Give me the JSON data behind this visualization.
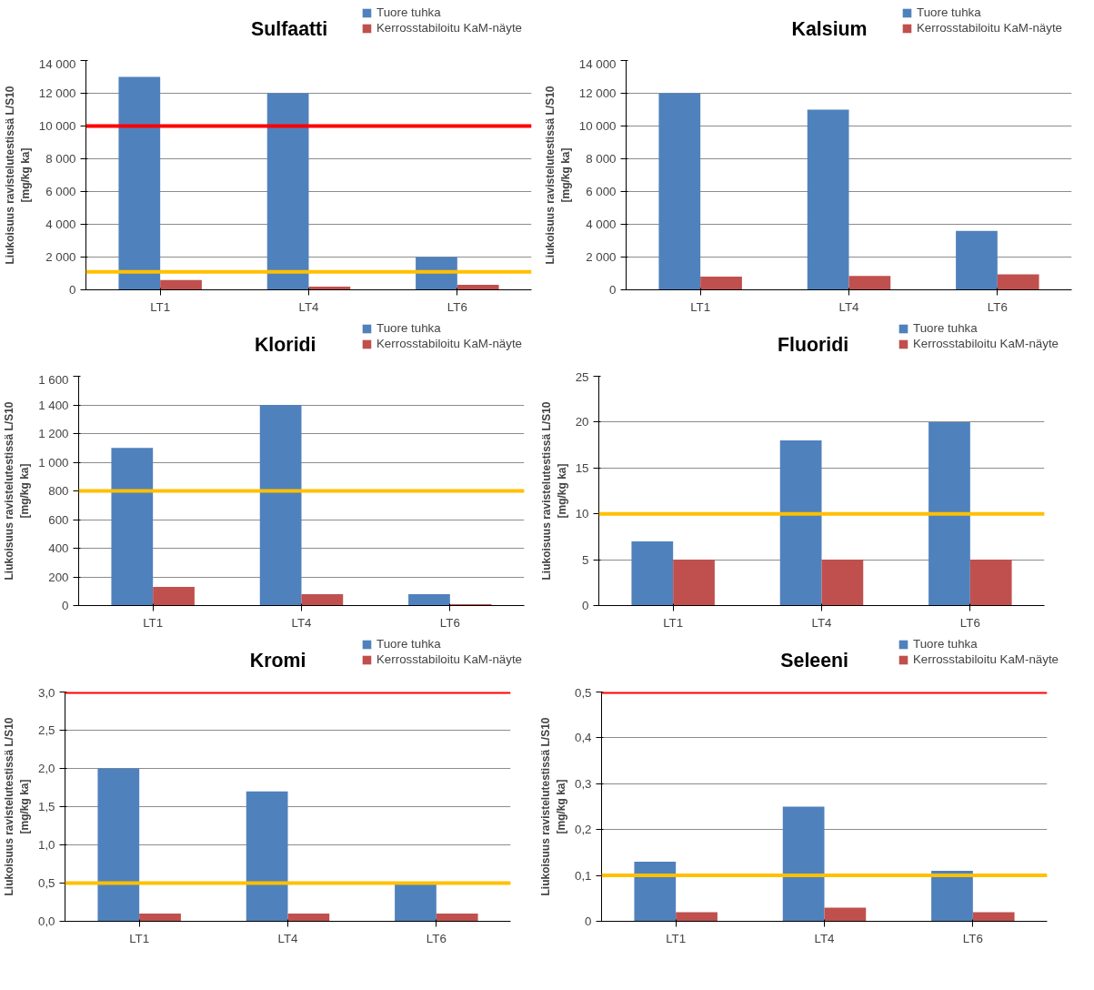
{
  "chart_data": [
    {
      "type": "bar",
      "title": "Sulfaatti",
      "ylabel": "Liukoisuus ravistelutestissä L/S10\n[mg/kg ka]",
      "categories": [
        "LT1",
        "LT4",
        "LT6"
      ],
      "series": [
        {
          "name": "Tuore tuhka",
          "color": "#4f81bd",
          "values": [
            13000,
            12000,
            2000
          ]
        },
        {
          "name": "Kerrosstabiloitu KaM-näyte",
          "color": "#c0504d",
          "values": [
            600,
            200,
            300
          ]
        }
      ],
      "ylim": [
        0,
        14000
      ],
      "yticks": [
        0,
        {
          "value": 2000,
          "label": "2 000"
        },
        {
          "value": 4000,
          "label": "4 000"
        },
        {
          "value": 6000,
          "label": "6 000"
        },
        {
          "value": 8000,
          "label": "8 000"
        },
        {
          "value": 10000,
          "label": "10 000"
        },
        {
          "value": 12000,
          "label": "12 000"
        },
        {
          "value": 14000,
          "label": "14 000"
        }
      ],
      "ref_lines": [
        {
          "axis": "y",
          "value": 10000,
          "color": "#ff0000"
        },
        {
          "axis": "y",
          "value": 1100,
          "color": "#ffc000"
        }
      ],
      "grid": "y",
      "legend": "top right"
    },
    {
      "type": "bar",
      "title": "Kalsium",
      "ylabel": "Liukoisuus ravistelutestissä L/S10\n[mg/kg ka]",
      "categories": [
        "LT1",
        "LT4",
        "LT6"
      ],
      "series": [
        {
          "name": "Tuore tuhka",
          "color": "#4f81bd",
          "values": [
            12000,
            11000,
            3600
          ]
        },
        {
          "name": "Kerrosstabiloitu KaM-näyte",
          "color": "#c0504d",
          "values": [
            800,
            850,
            950
          ]
        }
      ],
      "ylim": [
        0,
        14000
      ],
      "yticks": [
        0,
        {
          "value": 2000,
          "label": "2 000"
        },
        {
          "value": 4000,
          "label": "4 000"
        },
        {
          "value": 6000,
          "label": "6 000"
        },
        {
          "value": 8000,
          "label": "8 000"
        },
        {
          "value": 10000,
          "label": "10 000"
        },
        {
          "value": 12000,
          "label": "12 000"
        },
        {
          "value": 14000,
          "label": "14 000"
        }
      ],
      "grid": "y",
      "legend": "top right"
    },
    {
      "type": "bar",
      "title": "Kloridi",
      "ylabel": "Liukoisuus ravistelutestissä L/S10\n[mg/kg ka]",
      "categories": [
        "LT1",
        "LT4",
        "LT6"
      ],
      "series": [
        {
          "name": "Tuore tuhka",
          "color": "#4f81bd",
          "values": [
            1100,
            1400,
            80
          ]
        },
        {
          "name": "Kerrosstabiloitu KaM-näyte",
          "color": "#c0504d",
          "values": [
            130,
            80,
            10
          ]
        }
      ],
      "ylim": [
        0,
        1600
      ],
      "yticks": [
        0,
        200,
        400,
        600,
        800,
        {
          "value": 1000,
          "label": "1 000"
        },
        {
          "value": 1200,
          "label": "1 200"
        },
        {
          "value": 1400,
          "label": "1 400"
        },
        {
          "value": 1600,
          "label": "1 600"
        }
      ],
      "ref_lines": [
        {
          "axis": "y",
          "value": 800,
          "color": "#ffc000"
        }
      ],
      "grid": "y",
      "legend": "top right"
    },
    {
      "type": "bar",
      "title": "Fluoridi",
      "ylabel": "Liukoisuus ravistelutestissä L/S10\n[mg/kg ka]",
      "categories": [
        "LT1",
        "LT4",
        "LT6"
      ],
      "series": [
        {
          "name": "Tuore tuhka",
          "color": "#4f81bd",
          "values": [
            7,
            18,
            20
          ]
        },
        {
          "name": "Kerrosstabiloitu KaM-näyte",
          "color": "#c0504d",
          "values": [
            5,
            5,
            5
          ]
        }
      ],
      "ylim": [
        0,
        25
      ],
      "yticks": [
        0,
        5,
        10,
        15,
        20,
        25
      ],
      "ref_lines": [
        {
          "axis": "y",
          "value": 10,
          "color": "#ffc000"
        }
      ],
      "grid": "y",
      "legend": "top right"
    },
    {
      "type": "bar",
      "title": "Kromi",
      "ylabel": "Liukoisuus ravistelutestissä L/S10\n[mg/kg ka]",
      "categories": [
        "LT1",
        "LT4",
        "LT6"
      ],
      "series": [
        {
          "name": "Tuore tuhka",
          "color": "#4f81bd",
          "values": [
            2.0,
            1.7,
            0.5
          ]
        },
        {
          "name": "Kerrosstabiloitu KaM-näyte",
          "color": "#c0504d",
          "values": [
            0.1,
            0.1,
            0.1
          ]
        }
      ],
      "ylim": [
        0,
        3
      ],
      "yticks": [
        {
          "value": 0,
          "label": "0,0"
        },
        {
          "value": 0.5,
          "label": "0,5"
        },
        {
          "value": 1,
          "label": "1,0"
        },
        {
          "value": 1.5,
          "label": "1,5"
        },
        {
          "value": 2,
          "label": "2,0"
        },
        {
          "value": 2.5,
          "label": "2,5"
        },
        {
          "value": 3,
          "label": "3,0"
        }
      ],
      "ref_lines": [
        {
          "axis": "y",
          "value": 3,
          "color": "#ff0000"
        },
        {
          "axis": "y",
          "value": 0.5,
          "color": "#ffc000"
        }
      ],
      "grid": "y",
      "legend": "top right"
    },
    {
      "type": "bar",
      "title": "Seleeni",
      "ylabel": "Liukoisuus ravistelutestissä L/S10\n[mg/kg ka]",
      "categories": [
        "LT1",
        "LT4",
        "LT6"
      ],
      "series": [
        {
          "name": "Tuore tuhka",
          "color": "#4f81bd",
          "values": [
            0.13,
            0.25,
            0.11
          ]
        },
        {
          "name": "Kerrosstabiloitu KaM-näyte",
          "color": "#c0504d",
          "values": [
            0.02,
            0.03,
            0.02
          ]
        }
      ],
      "ylim": [
        0,
        0.5
      ],
      "yticks": [
        0,
        {
          "value": 0.1,
          "label": "0,1"
        },
        {
          "value": 0.2,
          "label": "0,2"
        },
        {
          "value": 0.3,
          "label": "0,3"
        },
        {
          "value": 0.4,
          "label": "0,4"
        },
        {
          "value": 0.5,
          "label": "0,5"
        }
      ],
      "ref_lines": [
        {
          "axis": "y",
          "value": 0.5,
          "color": "#ff0000"
        },
        {
          "axis": "y",
          "value": 0.1,
          "color": "#ffc000"
        }
      ],
      "grid": "y",
      "legend": "top right"
    }
  ]
}
